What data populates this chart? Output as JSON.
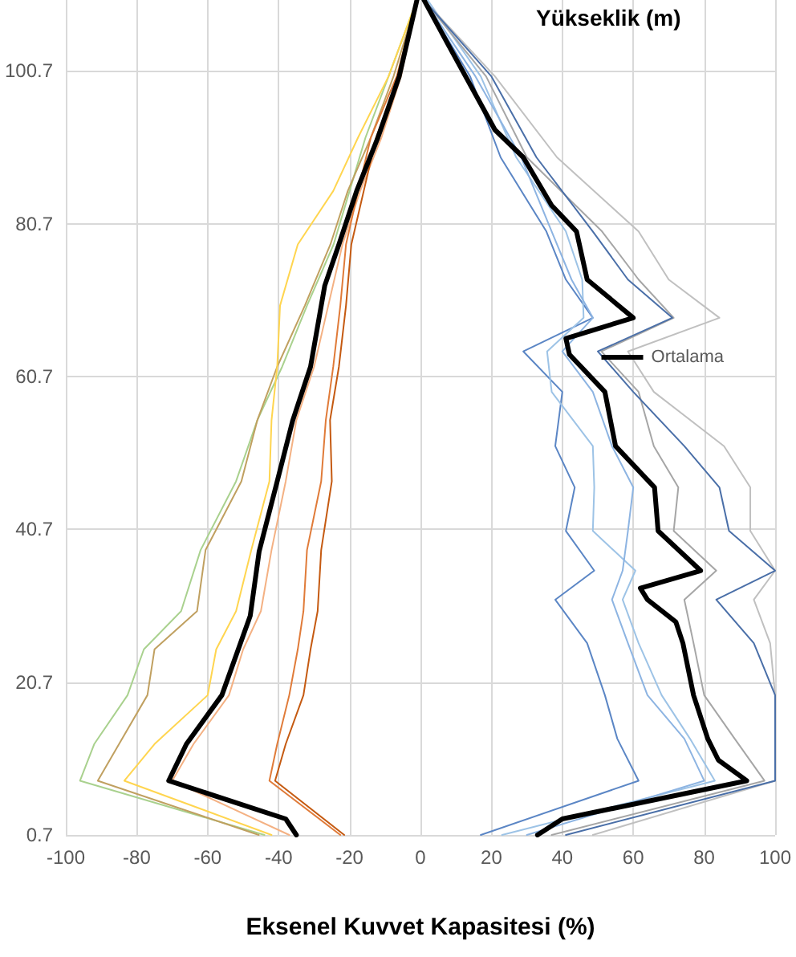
{
  "chart_data": {
    "type": "line",
    "xlabel": "Eksenel Kuvvet Kapasitesi (%)",
    "ylabel": "Yükseklik (m)",
    "xlim": [
      -100,
      100
    ],
    "xticks": [
      -100,
      -80,
      -60,
      -40,
      -20,
      0,
      20,
      40,
      60,
      80,
      100
    ],
    "ylim": [
      0.7,
      110
    ],
    "yticks": [
      0.7,
      20.7,
      40.7,
      60.7,
      80.7,
      100.7
    ],
    "grid": true,
    "legend": "right",
    "marker": "none",
    "line_style": "solid",
    "series": [
      {
        "color": "#a9d18e",
        "x": [
          -44,
          -96,
          -92,
          -82.6,
          -78,
          -67.5,
          -62,
          -52,
          -46,
          -39,
          -32,
          -24.5,
          -20,
          -15.5,
          -9,
          -1
        ],
        "values": [
          0.7,
          7.8,
          12.6,
          19,
          25,
          30,
          38,
          47,
          55,
          62,
          70,
          78,
          85,
          92,
          100,
          110
        ]
      },
      {
        "color": "#c0a060",
        "x": [
          -45.6,
          -91,
          -85,
          -77,
          -75,
          -63,
          -60.6,
          -50.5,
          -46,
          -40.4,
          -32.6,
          -25.4,
          -20.5,
          -14,
          -7.6,
          -1
        ],
        "values": [
          0.7,
          7.8,
          12.6,
          19,
          25,
          30,
          38,
          47,
          55,
          62,
          70,
          78,
          85,
          92,
          100,
          110
        ]
      },
      {
        "color": "#ffd54f",
        "x": [
          -42,
          -83.5,
          -75,
          -60,
          -57.6,
          -52,
          -47.7,
          -42.6,
          -42,
          -40.4,
          -39.6,
          -34.6,
          -24.6,
          -17.6,
          -9,
          -1
        ],
        "values": [
          0.7,
          7.8,
          12.6,
          19,
          25,
          30,
          38,
          47,
          55,
          62,
          70,
          78,
          85,
          92,
          100,
          110
        ]
      },
      {
        "color": "#f4b183",
        "x": [
          -37,
          -70,
          -64,
          -54,
          -50,
          -45,
          -42,
          -38,
          -35,
          -30,
          -26,
          -22,
          -17,
          -11,
          -5.5,
          -1
        ],
        "values": [
          0.7,
          7.8,
          12.6,
          19,
          25,
          30,
          38,
          47,
          55,
          62,
          70,
          78,
          85,
          92,
          100,
          110
        ]
      },
      {
        "color": "#e07b39",
        "x": [
          -22.6,
          -42.6,
          -40.4,
          -37,
          -34.6,
          -33,
          -32,
          -28,
          -26.7,
          -24.6,
          -22.6,
          -21,
          -17.6,
          -14,
          -6.7,
          -1
        ],
        "values": [
          0.7,
          7.8,
          12.6,
          19,
          25,
          30,
          38,
          47,
          55,
          62,
          70,
          78,
          85,
          92,
          100,
          110
        ]
      },
      {
        "color": "#c55a11",
        "x": [
          -21.5,
          -41,
          -38,
          -33,
          -31,
          -29,
          -28,
          -25,
          -25.5,
          -23,
          -21,
          -19.5,
          -16,
          -12.5,
          -6,
          -1
        ],
        "values": [
          0.7,
          7.8,
          12.6,
          19,
          25,
          30,
          38,
          47,
          55,
          62,
          70,
          78,
          85,
          92,
          100,
          110
        ]
      },
      {
        "color": "#000000",
        "x": [
          -35,
          -38,
          -71,
          -66,
          -56,
          -48,
          -45.5,
          -40.5,
          -36,
          -31,
          -27,
          -23,
          -18,
          -12,
          -6,
          -1
        ],
        "values": [
          0.7,
          2.8,
          7.8,
          12.6,
          19,
          29.4,
          37.8,
          46.8,
          55,
          62,
          72.6,
          78,
          85,
          92,
          100,
          110
        ]
      },
      {
        "color": "#5b86c5",
        "x": [
          17,
          61.5,
          55.5,
          52,
          47,
          38,
          49,
          41,
          43.5,
          38,
          40,
          29,
          48.6,
          41,
          35.5,
          22.6,
          14,
          1
        ],
        "values": [
          0.7,
          7.8,
          13.3,
          19,
          25.8,
          31.5,
          35.3,
          40.5,
          46.2,
          51.6,
          58.7,
          64,
          68.4,
          73.4,
          79.7,
          89.4,
          100,
          110
        ]
      },
      {
        "color": "#9dc3e6",
        "x": [
          23,
          83,
          76,
          68,
          61.5,
          57,
          60.6,
          48.6,
          49,
          48.6,
          37,
          35.7,
          46,
          45.6,
          41,
          27,
          17,
          2
        ],
        "values": [
          0.7,
          7.8,
          13.3,
          19,
          25.8,
          31.5,
          35.3,
          40.5,
          46.2,
          51.6,
          58.7,
          64,
          68.4,
          73.4,
          79.7,
          89.4,
          100,
          110
        ]
      },
      {
        "color": "#8db4e2",
        "x": [
          30,
          80,
          74.4,
          64,
          58.5,
          54,
          57,
          58.5,
          60,
          54,
          48.6,
          40,
          48.6,
          42.6,
          37,
          28.4,
          15.5,
          1
        ],
        "values": [
          0.7,
          7.8,
          13.3,
          19,
          25.8,
          31.5,
          35.3,
          40.5,
          46.2,
          51.6,
          58.7,
          64,
          68.4,
          73.4,
          79.7,
          89.4,
          100,
          110
        ]
      },
      {
        "color": "#a6a6a6",
        "x": [
          37,
          97,
          88.6,
          80,
          77,
          74.4,
          83.4,
          71.4,
          72.7,
          65.8,
          61.5,
          51,
          71.4,
          61.5,
          51.2,
          30,
          18.5,
          1
        ],
        "values": [
          0.7,
          7.8,
          13.3,
          19,
          25.8,
          31.5,
          35.3,
          40.5,
          46.2,
          51.6,
          58.7,
          64,
          68.4,
          73.4,
          79.7,
          89.4,
          100,
          110
        ]
      },
      {
        "color": "#c0c0c0",
        "x": [
          48.6,
          100,
          100,
          100,
          98.6,
          94,
          100,
          93,
          93,
          85.6,
          65.8,
          58.5,
          84.3,
          70,
          61.5,
          38.5,
          21,
          1
        ],
        "values": [
          0.7,
          7.8,
          13.3,
          19,
          25.8,
          31.5,
          35.3,
          40.5,
          46.2,
          51.6,
          58.7,
          64,
          68.4,
          73.4,
          79.7,
          89.4,
          100,
          110
        ]
      },
      {
        "color": "#4a6fa8",
        "x": [
          41,
          100,
          100,
          100,
          94,
          83.4,
          100,
          87,
          84.3,
          74.4,
          60,
          50,
          71,
          58.5,
          48.6,
          32.7,
          20,
          1
        ],
        "values": [
          0.7,
          7.8,
          13.3,
          19,
          25.8,
          31.5,
          35.3,
          40.5,
          46.2,
          51.6,
          58.7,
          64,
          68.4,
          73.4,
          79.7,
          89.4,
          100,
          110
        ]
      },
      {
        "name": "Ortalama",
        "color": "#000000",
        "x": [
          33,
          40,
          92,
          84,
          81,
          77,
          74,
          72,
          64,
          62,
          79,
          67,
          66,
          55,
          52,
          42,
          41,
          60,
          47,
          44,
          37,
          29,
          21,
          8,
          1
        ],
        "values": [
          0.7,
          2.8,
          7.8,
          10.5,
          13.3,
          19,
          25.8,
          28.6,
          31.5,
          33,
          35.3,
          40.5,
          46.2,
          51.6,
          58.7,
          63.6,
          65.7,
          68.4,
          73.4,
          79.7,
          83.1,
          89.4,
          93,
          104,
          110
        ]
      }
    ]
  }
}
